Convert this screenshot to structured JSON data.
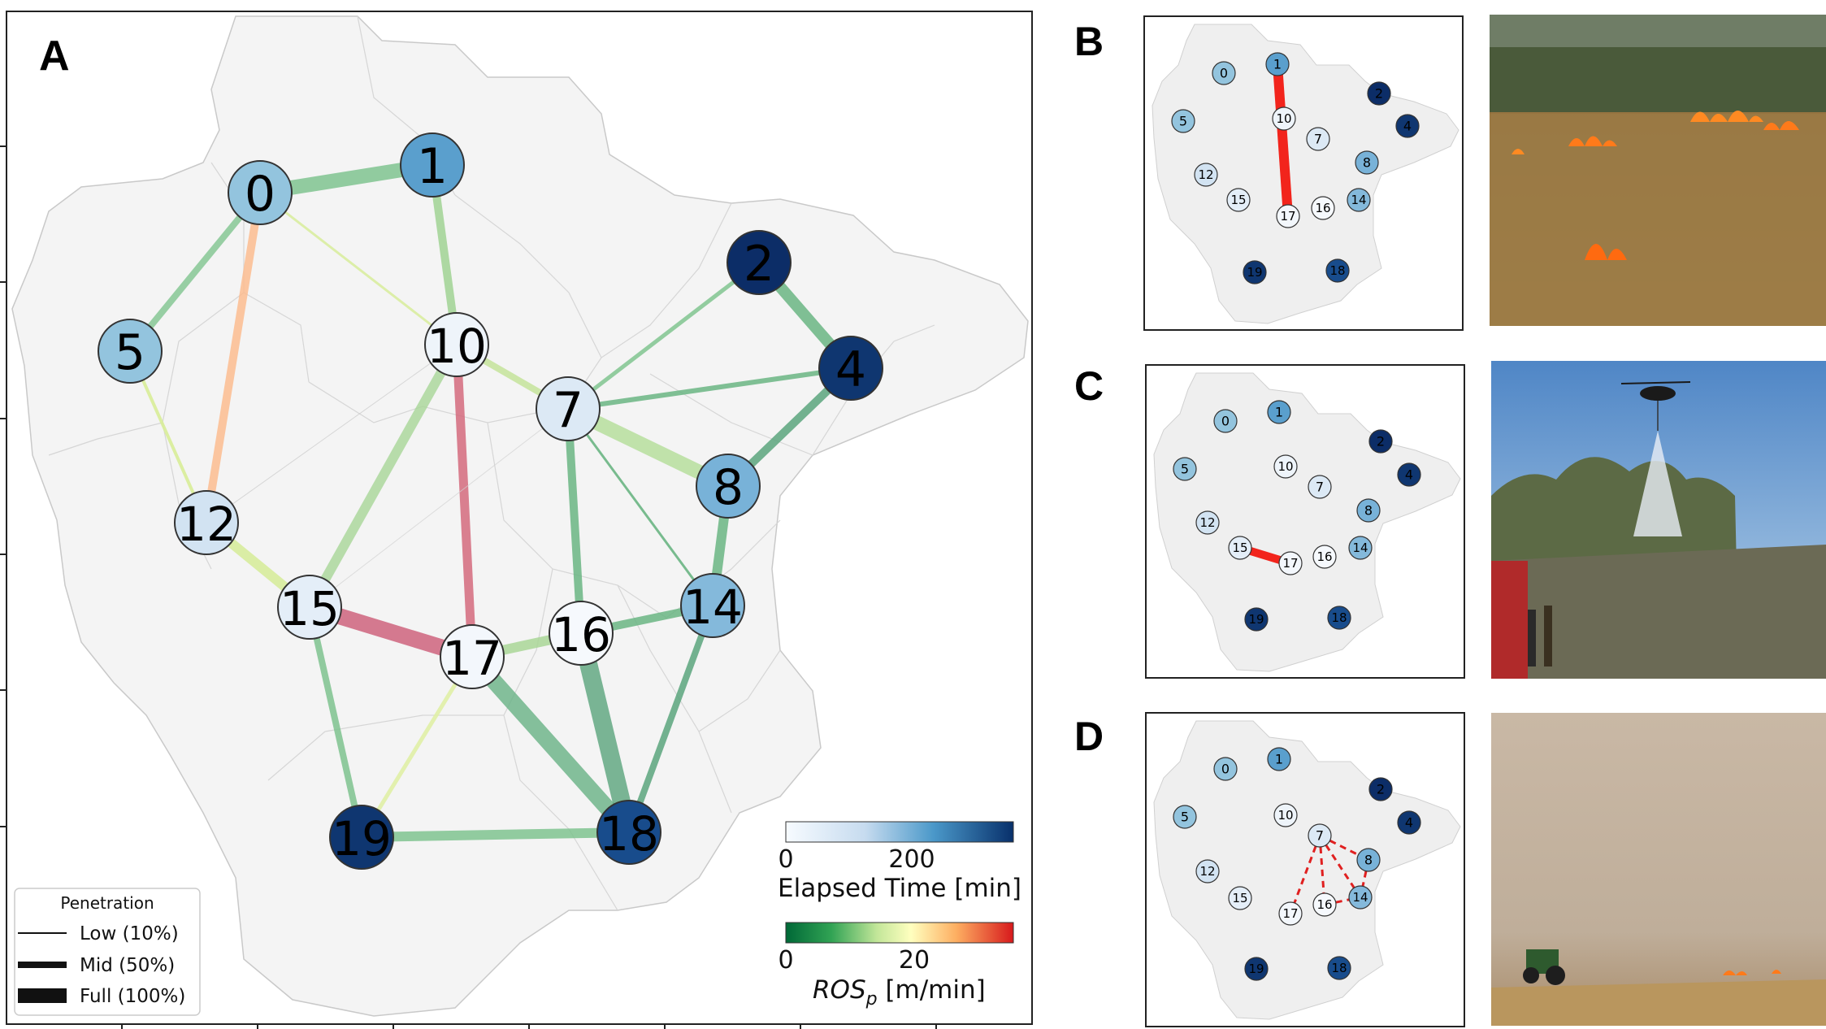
{
  "panels": {
    "A": "A",
    "B": "B",
    "C": "C",
    "D": "D"
  },
  "nodes": [
    {
      "id": "0",
      "color": "#93c4de"
    },
    {
      "id": "1",
      "color": "#5a9fcd"
    },
    {
      "id": "2",
      "color": "#0c2d67"
    },
    {
      "id": "4",
      "color": "#0f3670"
    },
    {
      "id": "5",
      "color": "#93c4de"
    },
    {
      "id": "7",
      "color": "#dce9f5"
    },
    {
      "id": "8",
      "color": "#78b2d8"
    },
    {
      "id": "10",
      "color": "#eef4fa"
    },
    {
      "id": "12",
      "color": "#d2e3f2"
    },
    {
      "id": "14",
      "color": "#84b9db"
    },
    {
      "id": "15",
      "color": "#e4eef8"
    },
    {
      "id": "16",
      "color": "#f6f9fd"
    },
    {
      "id": "17",
      "color": "#f3f7fc"
    },
    {
      "id": "18",
      "color": "#184c8c"
    },
    {
      "id": "19",
      "color": "#0f3670"
    }
  ],
  "penetration_legend": {
    "title": "Penetration",
    "items": [
      "Low (10%)",
      "Mid (50%)",
      "Full (100%)"
    ]
  },
  "elapsed_colorbar": {
    "ticks": [
      "0",
      "200"
    ],
    "label": "Elapsed Time [min]"
  },
  "ros_colorbar": {
    "ticks": [
      "0",
      "20"
    ],
    "label_main": "ROS",
    "label_sub": "p",
    "label_unit": " [m/min]"
  }
}
